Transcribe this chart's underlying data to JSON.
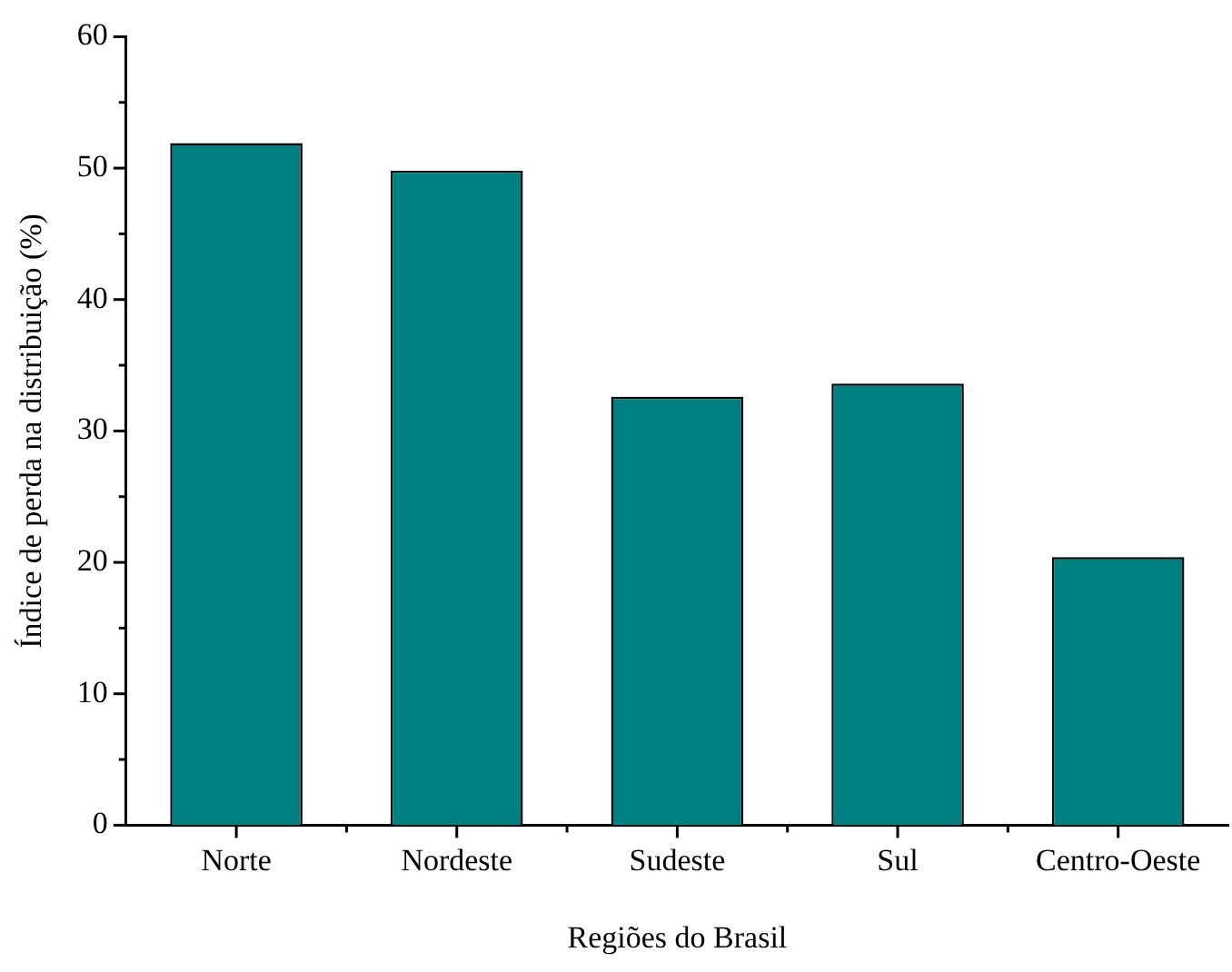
{
  "chart_data": {
    "type": "bar",
    "xlabel": "Regiões do Brasil",
    "ylabel": "Índice de perda na distribuição (%)",
    "categories": [
      "Norte",
      "Nordeste",
      "Sudeste",
      "Sul",
      "Centro-Oeste"
    ],
    "values": [
      51.9,
      49.8,
      32.6,
      33.6,
      20.4
    ],
    "color": "#008080",
    "ylim": [
      0,
      60
    ],
    "yticks": [
      0,
      {
        "value": 5,
        "label": null
      },
      10,
      {
        "value": 15,
        "label": null
      },
      20,
      {
        "value": 25,
        "label": null
      },
      30,
      {
        "value": 35,
        "label": null
      },
      40,
      {
        "value": 45,
        "label": null
      },
      50,
      {
        "value": 55,
        "label": null
      },
      60
    ],
    "grid": false,
    "legend": false
  }
}
